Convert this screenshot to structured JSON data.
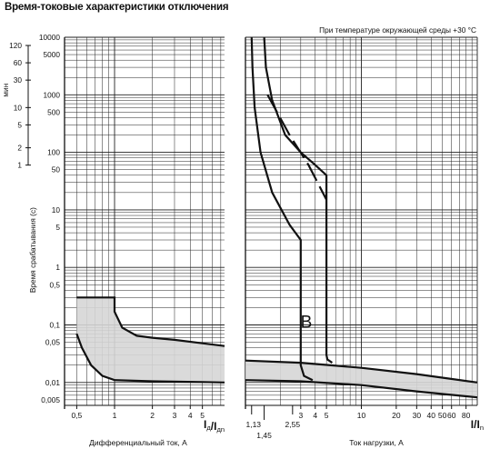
{
  "title": "Время-токовые характеристики отключения",
  "chart_data": [
    {
      "type": "line",
      "scale": "log-log",
      "ylabel": "Время срабатывания (с)",
      "ylabel_min": "мин",
      "y_ticks_s": [
        "10000",
        "5000",
        "1000",
        "500",
        "100",
        "50",
        "10",
        "5",
        "1",
        "0.5",
        "0.1",
        "0.05",
        "0.01",
        "0.005"
      ],
      "y_ticks_s_values": [
        10000,
        5000,
        1000,
        500,
        100,
        50,
        10,
        5,
        1,
        0.5,
        0.1,
        0.05,
        0.01,
        0.005
      ],
      "y_ticks_min": [
        "120",
        "60",
        "30",
        "10",
        "5",
        "2",
        "1"
      ],
      "y_ticks_min_values": [
        120,
        60,
        30,
        10,
        5,
        2,
        1
      ],
      "ylim": [
        0.004,
        10000
      ],
      "panels": [
        {
          "xlabel": "Дифференциальный ток, А",
          "x_axis_symbol": "Iд/Iдn",
          "x_ticks": [
            "0,5",
            "1",
            "2",
            "3",
            "4",
            "5"
          ],
          "x_ticks_values": [
            0.5,
            1,
            2,
            3,
            4,
            5
          ],
          "xlim": [
            0.4,
            7.5
          ],
          "band": {
            "upper": [
              [
                0.5,
                0.3
              ],
              [
                1.0,
                0.3
              ],
              [
                1.0,
                0.17
              ],
              [
                1.15,
                0.09
              ],
              [
                1.5,
                0.065
              ],
              [
                2,
                0.06
              ],
              [
                3,
                0.055
              ],
              [
                5,
                0.048
              ],
              [
                7.5,
                0.043
              ]
            ],
            "lower": [
              [
                0.5,
                0.07
              ],
              [
                0.55,
                0.04
              ],
              [
                0.65,
                0.02
              ],
              [
                0.8,
                0.013
              ],
              [
                1,
                0.011
              ],
              [
                2,
                0.0105
              ],
              [
                5,
                0.0102
              ],
              [
                7.5,
                0.01
              ]
            ]
          }
        },
        {
          "annotation_top": "При температуре окружающей среды +30 °C",
          "curve_label": "B",
          "xlabel": "Ток нагрузки, А",
          "x_axis_symbol": "I/In",
          "x_ticks": [
            "1,13",
            "1,45",
            "2,55",
            "3",
            "4",
            "5",
            "10",
            "20",
            "30",
            "40",
            "50",
            "60",
            "80"
          ],
          "x_ticks_values": [
            1.13,
            1.45,
            2.55,
            3,
            4,
            5,
            10,
            20,
            30,
            40,
            50,
            60,
            80
          ],
          "xlim": [
            1,
            100
          ],
          "curves": [
            {
              "name": "upper-thermal",
              "points": [
                [
                  1.45,
                  10000
                ],
                [
                  1.5,
                  3000
                ],
                [
                  1.7,
                  800
                ],
                [
                  2.2,
                  200
                ],
                [
                  3,
                  100
                ],
                [
                  4,
                  60
                ],
                [
                  5,
                  40
                ],
                [
                  5,
                  0.03
                ],
                [
                  5.1,
                  0.025
                ],
                [
                  5.6,
                  0.022
                ]
              ]
            },
            {
              "name": "lower-thermal",
              "points": [
                [
                  1.13,
                  10000
                ],
                [
                  1.15,
                  3000
                ],
                [
                  1.2,
                  600
                ],
                [
                  1.35,
                  100
                ],
                [
                  1.7,
                  20
                ],
                [
                  2.4,
                  5.5
                ],
                [
                  3,
                  3
                ],
                [
                  3,
                  0.02
                ],
                [
                  3.2,
                  0.013
                ],
                [
                  3.8,
                  0.011
                ]
              ]
            },
            {
              "name": "dashed-thermal",
              "points": [
                [
                  1.55,
                  1000
                ],
                [
                  2.4,
                  200
                ],
                [
                  3.5,
                  60
                ],
                [
                  5,
                  15
                ]
              ]
            },
            {
              "name": "magnetic-band-upper",
              "points": [
                [
                  1,
                  0.024
                ],
                [
                  3,
                  0.022
                ],
                [
                  10,
                  0.018
                ],
                [
                  30,
                  0.014
                ],
                [
                  100,
                  0.01
                ]
              ]
            },
            {
              "name": "magnetic-band-lower",
              "points": [
                [
                  1,
                  0.011
                ],
                [
                  3,
                  0.0105
                ],
                [
                  10,
                  0.009
                ],
                [
                  30,
                  0.007
                ],
                [
                  100,
                  0.0055
                ]
              ]
            }
          ]
        }
      ]
    }
  ]
}
